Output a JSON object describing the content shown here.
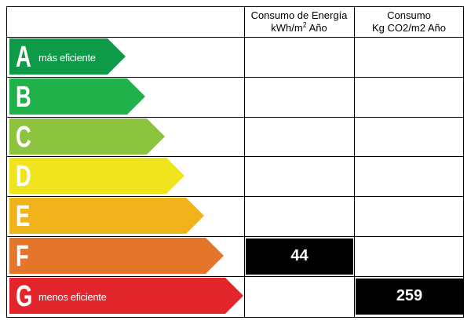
{
  "header": {
    "energy_line1": "Consumo de Energía",
    "energy_line2_prefix": "kWh/m",
    "energy_line2_sup": "2",
    "energy_line2_suffix": " Año",
    "co2_line1": "Consumo",
    "co2_line2": "Kg CO2/m2 Año"
  },
  "ratings": [
    {
      "letter": "A",
      "note": "más eficiente",
      "color": "#0f9a48"
    },
    {
      "letter": "B",
      "note": "",
      "color": "#21b14b"
    },
    {
      "letter": "C",
      "note": "",
      "color": "#8cc43f"
    },
    {
      "letter": "D",
      "note": "",
      "color": "#f0e41c"
    },
    {
      "letter": "E",
      "note": "",
      "color": "#f0b31b"
    },
    {
      "letter": "F",
      "note": "",
      "color": "#e4762b"
    },
    {
      "letter": "G",
      "note": "menos eficiente",
      "color": "#e3262b"
    }
  ],
  "values": {
    "energy": {
      "value": "44",
      "rating": "F"
    },
    "co2": {
      "value": "259",
      "rating": "G"
    }
  }
}
